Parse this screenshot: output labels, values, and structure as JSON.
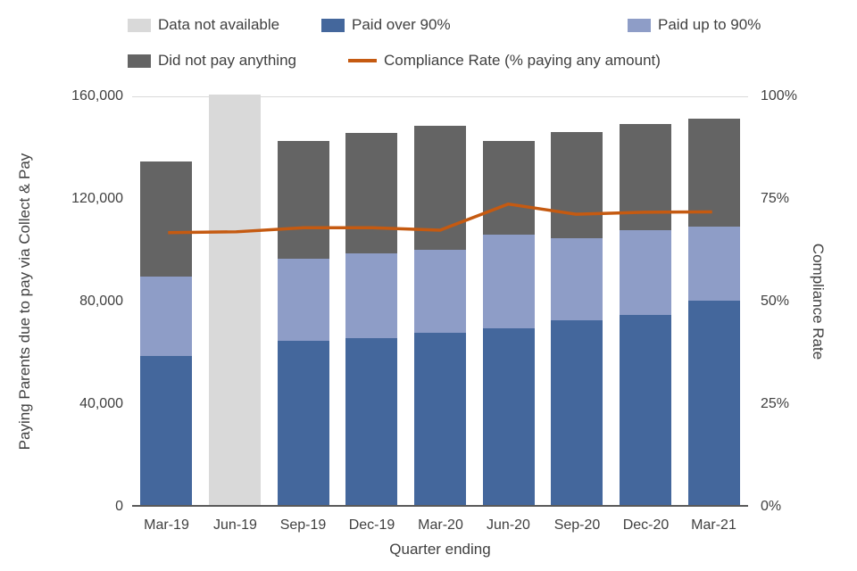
{
  "chart_data": {
    "type": "bar",
    "subtype": "stacked-bar-with-line-overlay",
    "title": "",
    "xlabel": "Quarter ending",
    "categories": [
      "Mar-19",
      "Jun-19",
      "Sep-19",
      "Dec-19",
      "Mar-20",
      "Jun-20",
      "Sep-20",
      "Dec-20",
      "Mar-21"
    ],
    "series": [
      {
        "key": "paid-over-90",
        "name": "Paid over 90%",
        "color": "#44679C",
        "values": [
          58000,
          null,
          64000,
          65000,
          67000,
          69000,
          72000,
          74000,
          79500
        ]
      },
      {
        "key": "paid-up-to-90",
        "name": "Paid up to 90%",
        "color": "#8E9DC7",
        "values": [
          31000,
          null,
          32000,
          33000,
          32500,
          36500,
          32000,
          33000,
          29000
        ]
      },
      {
        "key": "did-not-pay",
        "name": "Did not pay anything",
        "color": "#646464",
        "values": [
          45000,
          null,
          46000,
          47000,
          48500,
          36500,
          41500,
          41500,
          42000
        ]
      },
      {
        "key": "data-not-available",
        "name": "Data not available",
        "color": "#D9D9D9",
        "values": [
          null,
          160000,
          null,
          null,
          null,
          null,
          null,
          null,
          null
        ]
      }
    ],
    "line": {
      "name": "Compliance Rate (% paying any amount)",
      "color": "#C55A11",
      "values": [
        66.8,
        67.0,
        68.0,
        68.0,
        67.4,
        73.8,
        71.3,
        71.8,
        71.9
      ]
    },
    "left_axis": {
      "label": "Paying Parents due to pay via Collect & Pay",
      "min": 0,
      "max": 160000,
      "ticks": [
        "0",
        "40,000",
        "80,000",
        "120,000",
        "160,000"
      ]
    },
    "right_axis": {
      "label": "Compliance Rate",
      "min": 0,
      "max": 100,
      "ticks": [
        "0%",
        "25%",
        "50%",
        "75%",
        "100%"
      ]
    },
    "grid": "off",
    "legend_position": "top"
  },
  "legend": {
    "rows": [
      [
        {
          "label": "Data not available",
          "color": "#D9D9D9",
          "marker": "box"
        },
        {
          "label": "Paid over 90%",
          "color": "#44679C",
          "marker": "box"
        },
        {
          "label": "Paid up to 90%",
          "color": "#8E9DC7",
          "marker": "box"
        }
      ],
      [
        {
          "label": "Did not pay anything",
          "color": "#646464",
          "marker": "box"
        },
        {
          "label": "Compliance Rate (% paying any amount)",
          "color": "#C55A11",
          "marker": "line"
        }
      ]
    ]
  }
}
